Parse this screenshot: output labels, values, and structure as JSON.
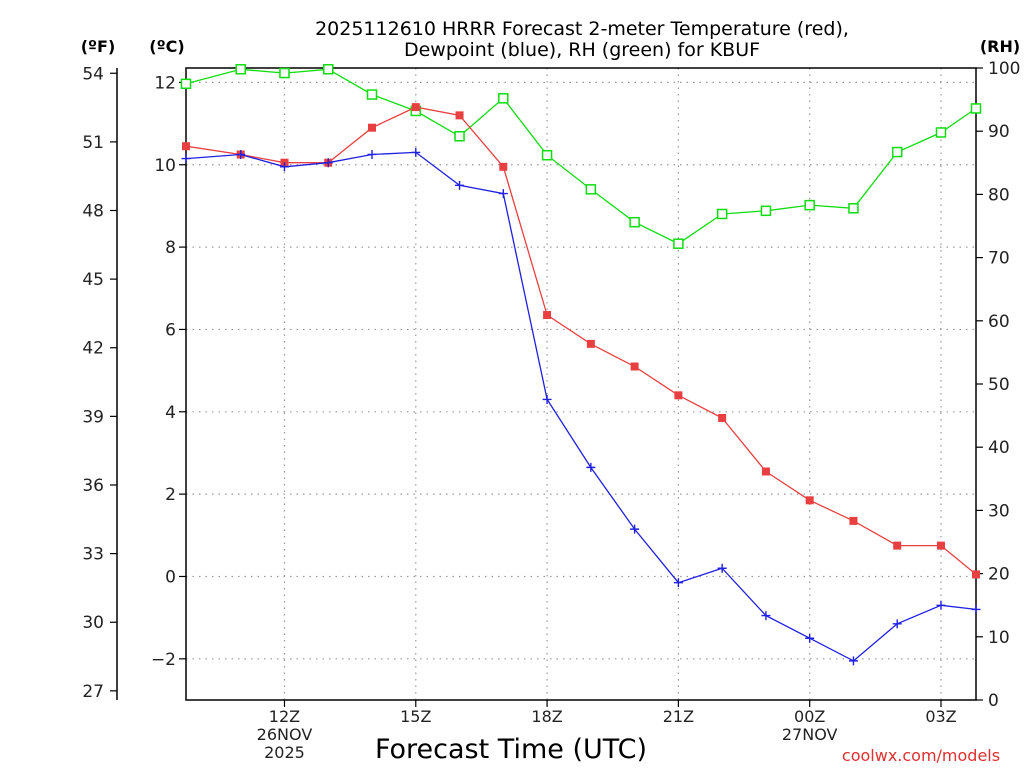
{
  "colors": {
    "temperature": "#e84040",
    "dewpoint": "#2020e0",
    "rh": "#10dd10",
    "credit": "#e03030"
  },
  "chart_data": {
    "type": "line",
    "title_lines": [
      "2025112610 HRRR Forecast 2-meter Temperature (red),",
      "Dewpoint (blue), RH (green) for KBUF"
    ],
    "left_outer_unit": "(ºF)",
    "left_inner_unit": "(ºC)",
    "right_unit": "(RH)",
    "xlabel": "Forecast Time (UTC)",
    "credit": "coolwx.com/models",
    "x_hours_range": [
      9.75,
      27.8
    ],
    "celsius_range": [
      -3.0,
      12.35
    ],
    "rh_range": [
      0,
      100
    ],
    "x_ticks": [
      {
        "hour": 12,
        "lines": [
          "12Z",
          "26NOV",
          "2025"
        ]
      },
      {
        "hour": 15,
        "lines": [
          "15Z"
        ]
      },
      {
        "hour": 18,
        "lines": [
          "18Z"
        ]
      },
      {
        "hour": 21,
        "lines": [
          "21Z"
        ]
      },
      {
        "hour": 24,
        "lines": [
          "00Z",
          "27NOV"
        ]
      },
      {
        "hour": 27,
        "lines": [
          "03Z"
        ]
      }
    ],
    "celsius_ticks": [
      -2,
      0,
      2,
      4,
      6,
      8,
      10,
      12
    ],
    "fahrenheit_ticks": [
      27,
      30,
      33,
      36,
      39,
      42,
      45,
      48,
      51,
      54
    ],
    "rh_ticks": [
      0,
      10,
      20,
      30,
      40,
      50,
      60,
      70,
      80,
      90,
      100
    ],
    "hours": [
      9.75,
      11,
      12,
      13,
      14,
      15,
      16,
      17,
      18,
      19,
      20,
      21,
      22,
      23,
      24,
      25,
      26,
      27,
      27.8
    ],
    "series": [
      {
        "name": "Temperature",
        "unit": "C",
        "values": [
          10.45,
          10.25,
          10.05,
          10.05,
          10.9,
          11.4,
          11.2,
          9.95,
          6.35,
          5.65,
          5.1,
          4.4,
          3.85,
          2.55,
          1.85,
          1.35,
          0.75,
          0.75,
          0.05
        ]
      },
      {
        "name": "Dewpoint",
        "unit": "C",
        "values": [
          10.15,
          10.25,
          9.95,
          10.05,
          10.25,
          10.3,
          9.5,
          9.3,
          4.3,
          2.65,
          1.15,
          -0.15,
          0.2,
          -0.95,
          -1.5,
          -2.05,
          -1.15,
          -0.7,
          -0.8
        ]
      },
      {
        "name": "RH",
        "unit": "%",
        "values": [
          97.5,
          99.8,
          99.2,
          99.8,
          95.8,
          93.2,
          89.2,
          95.2,
          86.2,
          80.8,
          75.6,
          72.2,
          76.9,
          77.4,
          78.3,
          77.8,
          86.7,
          89.8,
          93.6
        ]
      }
    ]
  }
}
